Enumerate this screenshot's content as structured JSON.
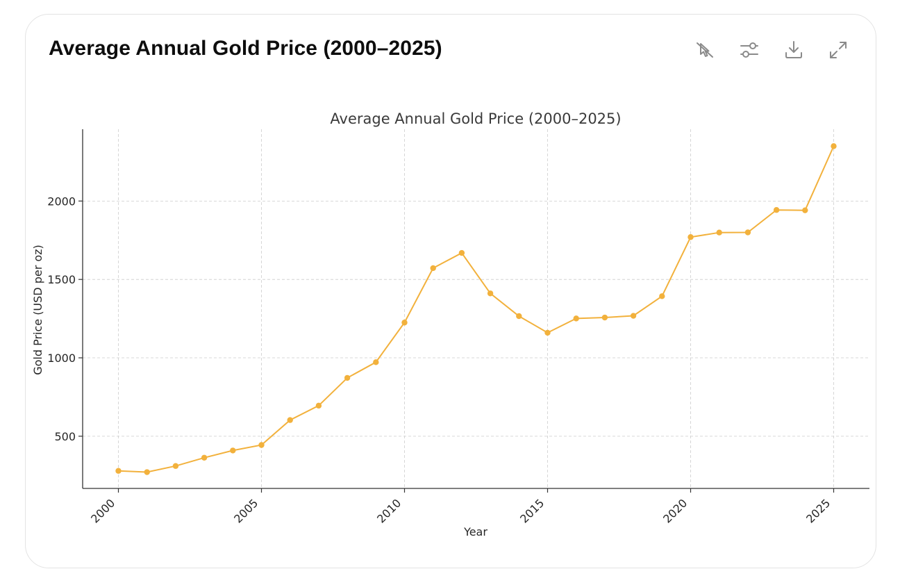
{
  "card": {
    "title": "Average Annual Gold Price (2000–2025)"
  },
  "toolbar": {
    "buttons": [
      {
        "name": "interactive-toggle",
        "icon": "cursor-off-icon"
      },
      {
        "name": "chart-settings",
        "icon": "sliders-icon"
      },
      {
        "name": "download",
        "icon": "download-icon"
      },
      {
        "name": "expand",
        "icon": "expand-icon"
      }
    ]
  },
  "chart_data": {
    "type": "line",
    "title": "Average Annual Gold Price (2000–2025)",
    "xlabel": "Year",
    "ylabel": "Gold Price (USD per oz)",
    "x": [
      2000,
      2001,
      2002,
      2003,
      2004,
      2005,
      2006,
      2007,
      2008,
      2009,
      2010,
      2011,
      2012,
      2013,
      2014,
      2015,
      2016,
      2017,
      2018,
      2019,
      2020,
      2021,
      2022,
      2023,
      2024,
      2025
    ],
    "series": [
      {
        "values": [
          279,
          271,
          310,
          363,
          409,
          444,
          603,
          695,
          872,
          972,
          1225,
          1572,
          1669,
          1411,
          1266,
          1160,
          1251,
          1257,
          1268,
          1393,
          1770,
          1799,
          1800,
          1943,
          1941,
          2350
        ],
        "color": "#f2b13c"
      }
    ],
    "xticks": [
      "2000",
      "2005",
      "2010",
      "2015",
      "2020",
      "2025"
    ],
    "yticks": [
      "500",
      "1000",
      "1500",
      "2000"
    ],
    "xlim": [
      1998.75,
      2026.25
    ],
    "ylim": [
      167,
      2458
    ],
    "grid": true,
    "legend": "none"
  }
}
